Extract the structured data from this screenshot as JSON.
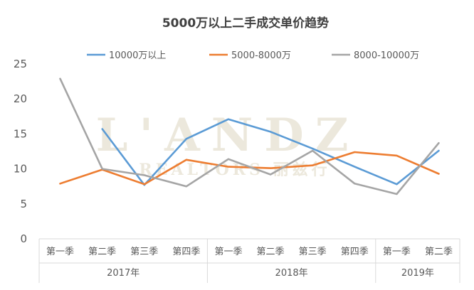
{
  "chart_data": {
    "type": "line",
    "title": "5000万以上二手成交单价趋势",
    "watermark": {
      "brand": "L'ANDZ",
      "sub": "REALTORS 丽兹行"
    },
    "categories": [
      "第一季",
      "第二季",
      "第三季",
      "第四季",
      "第一季",
      "第二季",
      "第三季",
      "第四季",
      "第一季",
      "第二季"
    ],
    "groups": [
      {
        "label": "2017年",
        "span": 4
      },
      {
        "label": "2018年",
        "span": 4
      },
      {
        "label": "2019年",
        "span": 2
      }
    ],
    "ylim": [
      0,
      25
    ],
    "yticks": [
      "0",
      "5",
      "10",
      "15",
      "20",
      "25"
    ],
    "legend_position": "top",
    "series": [
      {
        "name": "10000万以上",
        "color": "#5b9bd5",
        "values": [
          null,
          15.7,
          7.7,
          14.3,
          17.1,
          15.3,
          12.9,
          10.3,
          7.8,
          12.6
        ]
      },
      {
        "name": "5000-8000万",
        "color": "#ed7d31",
        "values": [
          7.9,
          9.9,
          7.8,
          11.3,
          10.3,
          10.1,
          10.5,
          12.4,
          11.9,
          9.3
        ]
      },
      {
        "name": "8000-10000万",
        "color": "#a5a5a5",
        "values": [
          22.9,
          10.0,
          9.1,
          7.5,
          11.4,
          9.2,
          12.6,
          7.9,
          6.4,
          13.7
        ]
      }
    ]
  }
}
